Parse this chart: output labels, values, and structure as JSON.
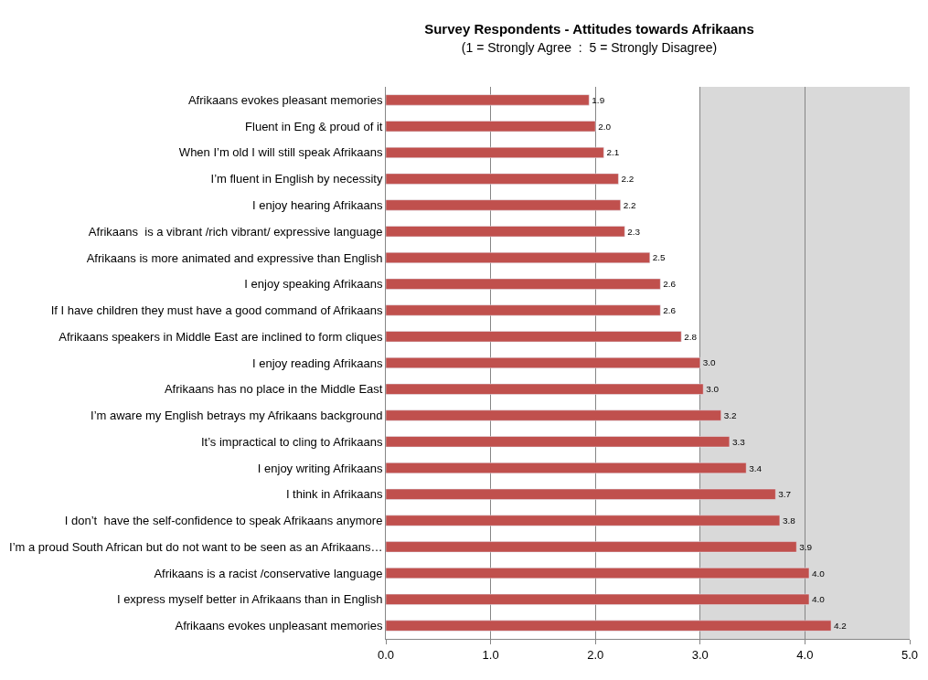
{
  "chart_data": {
    "type": "bar",
    "orientation": "horizontal",
    "title": "Survey Respondents - Attitudes towards Afrikaans",
    "subtitle": "(1 = Strongly Agree  :  5 = Strongly Disagree)",
    "categories": [
      "Afrikaans evokes pleasant memories",
      "Fluent in Eng & proud of it",
      "When I’m old I will still speak Afrikaans",
      "I’m fluent in English by necessity",
      "I enjoy hearing Afrikaans",
      "Afrikaans  is a vibrant /rich vibrant/ expressive language",
      "Afrikaans is more animated and expressive than English",
      "I enjoy speaking Afrikaans",
      "If I have children they must have a good command of Afrikaans",
      "Afrikaans speakers in Middle East are inclined to form cliques",
      "I enjoy reading Afrikaans",
      "Afrikaans has no place in the Middle East",
      "I’m aware my English betrays my Afrikaans background",
      "It’s impractical to cling to Afrikaans",
      "I enjoy writing Afrikaans",
      "I think in Afrikaans",
      "I don’t  have the self-confidence to speak Afrikaans anymore",
      "I’m a proud South African but do not want to be seen as an Afrikaans…",
      "Afrikaans is a racist /conservative language",
      "I express myself better in Afrikaans than in English",
      "Afrikaans evokes unpleasant memories"
    ],
    "values": [
      1.94,
      2.0,
      2.08,
      2.22,
      2.24,
      2.28,
      2.52,
      2.62,
      2.62,
      2.82,
      3.0,
      3.03,
      3.2,
      3.28,
      3.44,
      3.72,
      3.76,
      3.92,
      4.04,
      4.04,
      4.25
    ],
    "value_labels": [
      "1.9",
      "2.0",
      "2.1",
      "2.2",
      "2.2",
      "2.3",
      "2.5",
      "2.6",
      "2.6",
      "2.8",
      "3.0",
      "3.0",
      "3.2",
      "3.3",
      "3.4",
      "3.7",
      "3.8",
      "3.9",
      "4.0",
      "4.0",
      "4.2"
    ],
    "color": "#c0504d",
    "xlim": [
      0,
      5
    ],
    "xticks": [
      {
        "value": 0,
        "label": "0.0"
      },
      {
        "value": 1,
        "label": "1.0"
      },
      {
        "value": 2,
        "label": "2.0"
      },
      {
        "value": 3,
        "label": "3.0"
      },
      {
        "value": 4,
        "label": "4.0"
      },
      {
        "value": 5,
        "label": "5.0"
      }
    ],
    "grid": "x",
    "bands": [
      {
        "axis": "x",
        "from": 3,
        "to": 5,
        "color": "#d9d9d9"
      }
    ]
  }
}
